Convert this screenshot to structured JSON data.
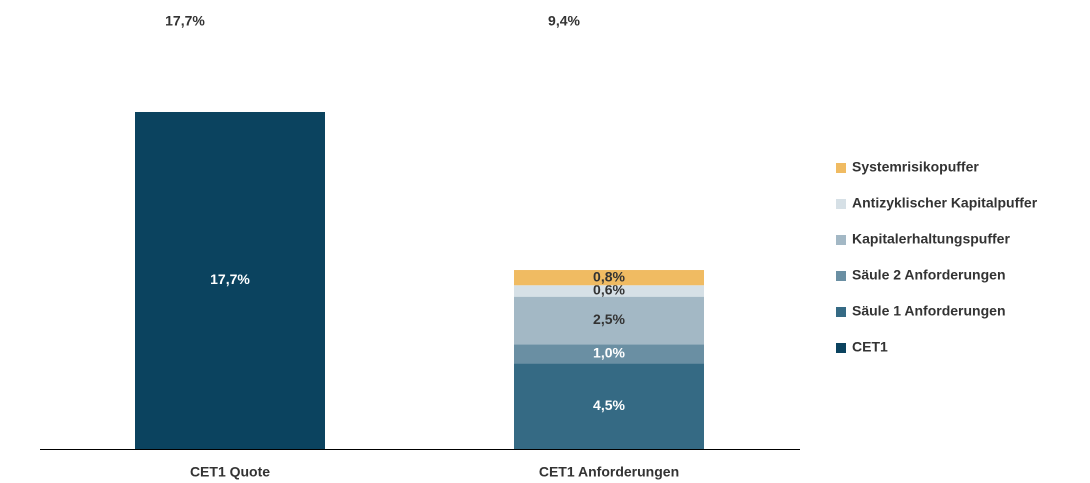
{
  "chart_data": {
    "type": "stacked_bar",
    "categories": [
      "CET1 Quote",
      "CET1 Anforderungen"
    ],
    "totals": [
      17.7,
      9.4
    ],
    "total_labels": [
      "17,7%",
      "9,4%"
    ],
    "series": [
      {
        "name": "CET1",
        "color": "#0b435f",
        "values": [
          17.7,
          null
        ],
        "value_labels": [
          "17,7%",
          null
        ]
      },
      {
        "name": "Säule 1 Anforderungen",
        "color": "#356a84",
        "values": [
          null,
          4.5
        ],
        "value_labels": [
          null,
          "4,5%"
        ]
      },
      {
        "name": "Säule 2 Anforderungen",
        "color": "#6a8fa3",
        "values": [
          null,
          1.0
        ],
        "value_labels": [
          null,
          "1,0%"
        ]
      },
      {
        "name": "Kapitalerhaltungspuffer",
        "color": "#a3b8c5",
        "values": [
          null,
          2.5
        ],
        "value_labels": [
          null,
          "2,5%"
        ]
      },
      {
        "name": "Antizyklischer Kapitalpuffer",
        "color": "#d6e0e6",
        "values": [
          null,
          0.6
        ],
        "value_labels": [
          null,
          "0,6%"
        ]
      },
      {
        "name": "Systemrisikopuffer",
        "color": "#f0bb62",
        "values": [
          null,
          0.8
        ],
        "value_labels": [
          null,
          "0,8%"
        ]
      }
    ],
    "ylim": [
      0,
      17.7
    ],
    "legend": "right"
  }
}
